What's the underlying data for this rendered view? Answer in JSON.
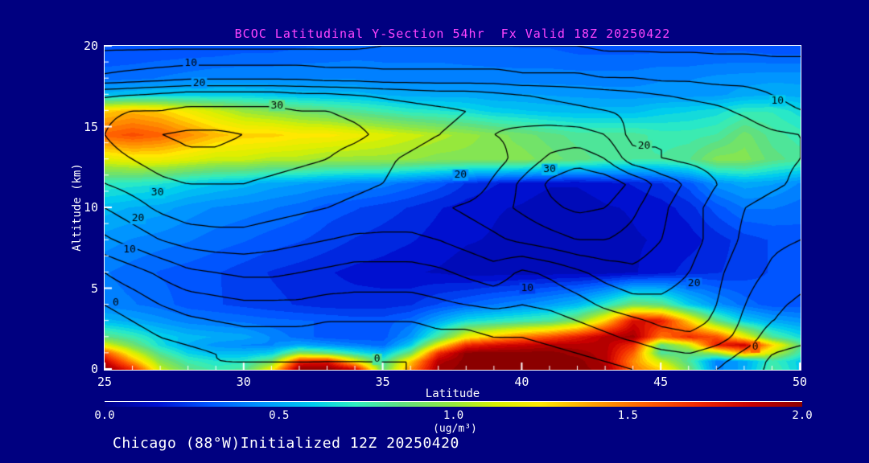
{
  "title": "BCOC Latitudinal Y-Section 54hr  Fx Valid 18Z 20250422",
  "footer": {
    "text": "Chicago (88°W)Initialized 12Z 20250420"
  },
  "colors": {
    "background": "#000080",
    "frame": "#FFFFFF",
    "title_text": "#FF45FF",
    "tick_text": "#FFFFFF",
    "contour_line": "#000000"
  },
  "axes": {
    "x": {
      "label": "Latitude",
      "min": 25,
      "max": 50,
      "minor_step": 1,
      "major_ticks": [
        {
          "v": 25,
          "t": "25"
        },
        {
          "v": 30,
          "t": "30"
        },
        {
          "v": 35,
          "t": "35"
        },
        {
          "v": 40,
          "t": "40"
        },
        {
          "v": 45,
          "t": "45"
        },
        {
          "v": 50,
          "t": "50"
        }
      ]
    },
    "y": {
      "label": "Altitude (km)",
      "min": 0,
      "max": 20,
      "minor_step": 1,
      "major_ticks": [
        {
          "v": 0,
          "t": "0"
        },
        {
          "v": 5,
          "t": "5"
        },
        {
          "v": 10,
          "t": "10"
        },
        {
          "v": 15,
          "t": "15"
        },
        {
          "v": 20,
          "t": "20"
        }
      ]
    }
  },
  "colorbar": {
    "unit": "(ug/m³)",
    "min": 0,
    "max": 2,
    "ticks": [
      {
        "v": 0,
        "t": "0.0"
      },
      {
        "v": 0.5,
        "t": "0.5"
      },
      {
        "v": 1,
        "t": "1.0"
      },
      {
        "v": 1.5,
        "t": "1.5"
      },
      {
        "v": 2,
        "t": "2.0"
      }
    ],
    "stops": [
      [
        0.0,
        "#000089"
      ],
      [
        0.15,
        "#0010D0"
      ],
      [
        0.3,
        "#0055FF"
      ],
      [
        0.45,
        "#0095FF"
      ],
      [
        0.6,
        "#00CCEE"
      ],
      [
        0.72,
        "#30EEC0"
      ],
      [
        0.85,
        "#60E080"
      ],
      [
        1.0,
        "#96E83C"
      ],
      [
        1.12,
        "#D8F000"
      ],
      [
        1.25,
        "#FFE800"
      ],
      [
        1.4,
        "#FFA000"
      ],
      [
        1.55,
        "#FF6000"
      ],
      [
        1.7,
        "#F02800"
      ],
      [
        1.85,
        "#C80000"
      ],
      [
        2.0,
        "#8B0000"
      ]
    ]
  },
  "chart_data": {
    "type": "filled_contour_cross_section",
    "title": "BCOC Latitudinal Y-Section 54hr  Fx Valid 18Z 20250422",
    "xlabel": "Latitude",
    "ylabel": "Altitude (km)",
    "xlim": [
      25,
      50
    ],
    "ylim": [
      0,
      20
    ],
    "x_lats": [
      25,
      26,
      27,
      28,
      29,
      30,
      31,
      32,
      33,
      34,
      35,
      36,
      37,
      38,
      39,
      40,
      41,
      42,
      43,
      44,
      45,
      46,
      47,
      48,
      49,
      50
    ],
    "y_alts": [
      0,
      0.5,
      1,
      1.5,
      2,
      3,
      4,
      6,
      8,
      10,
      11.5,
      13,
      14.5,
      16,
      17,
      18,
      20
    ],
    "fill_field": {
      "name": "BCOC concentration",
      "units": "ug/m3",
      "range": [
        0,
        2
      ],
      "quantize_step": 0.05,
      "values": [
        [
          2.0,
          1.7,
          1.1,
          0.85,
          0.75,
          0.8,
          1.2,
          2.0,
          2.0,
          1.85,
          0.85,
          1.45,
          1.95,
          2.0,
          2.0,
          2.0,
          2.0,
          2.0,
          1.95,
          1.5,
          1.3,
          0.9,
          0.4,
          0.5,
          0.8,
          0.6
        ],
        [
          1.85,
          1.4,
          0.95,
          0.75,
          0.68,
          0.7,
          0.9,
          1.7,
          1.75,
          1.2,
          0.75,
          1.3,
          1.9,
          2.0,
          2.0,
          2.0,
          2.0,
          2.0,
          1.9,
          1.45,
          1.1,
          0.8,
          0.4,
          0.5,
          0.75,
          0.6
        ],
        [
          1.6,
          1.15,
          0.8,
          0.62,
          0.55,
          0.55,
          0.6,
          0.95,
          0.85,
          0.7,
          0.55,
          0.9,
          1.7,
          2.0,
          2.0,
          2.0,
          2.0,
          1.95,
          1.9,
          1.55,
          0.8,
          0.85,
          1.0,
          1.4,
          1.1,
          0.75
        ],
        [
          1.15,
          0.9,
          0.65,
          0.52,
          0.45,
          0.42,
          0.42,
          0.5,
          0.45,
          0.4,
          0.35,
          0.6,
          1.2,
          1.7,
          1.8,
          1.85,
          1.9,
          1.9,
          1.9,
          1.7,
          0.85,
          1.1,
          1.75,
          1.85,
          1.3,
          0.85
        ],
        [
          0.85,
          0.75,
          0.62,
          0.55,
          0.52,
          0.5,
          0.42,
          0.35,
          0.3,
          0.28,
          0.3,
          0.45,
          0.8,
          1.2,
          1.35,
          1.5,
          1.6,
          1.75,
          1.9,
          1.95,
          1.5,
          1.7,
          1.6,
          1.2,
          0.8,
          0.65
        ],
        [
          0.55,
          0.5,
          0.45,
          0.4,
          0.38,
          0.36,
          0.34,
          0.33,
          0.32,
          0.3,
          0.3,
          0.35,
          0.5,
          0.65,
          0.7,
          0.75,
          0.8,
          0.95,
          1.3,
          1.8,
          1.75,
          1.3,
          0.85,
          0.6,
          0.5,
          0.45
        ],
        [
          0.4,
          0.38,
          0.35,
          0.3,
          0.28,
          0.26,
          0.24,
          0.22,
          0.2,
          0.2,
          0.2,
          0.22,
          0.28,
          0.33,
          0.38,
          0.42,
          0.48,
          0.55,
          0.7,
          0.9,
          0.85,
          0.6,
          0.45,
          0.35,
          0.3,
          0.3
        ],
        [
          0.38,
          0.35,
          0.32,
          0.3,
          0.28,
          0.25,
          0.22,
          0.2,
          0.18,
          0.16,
          0.15,
          0.13,
          0.12,
          0.1,
          0.1,
          0.1,
          0.1,
          0.1,
          0.1,
          0.12,
          0.15,
          0.2,
          0.22,
          0.25,
          0.28,
          0.3
        ],
        [
          0.45,
          0.42,
          0.4,
          0.38,
          0.35,
          0.33,
          0.3,
          0.28,
          0.25,
          0.22,
          0.2,
          0.18,
          0.15,
          0.13,
          0.12,
          0.1,
          0.1,
          0.1,
          0.1,
          0.12,
          0.13,
          0.15,
          0.2,
          0.25,
          0.28,
          0.3
        ],
        [
          0.55,
          0.52,
          0.5,
          0.45,
          0.42,
          0.4,
          0.38,
          0.35,
          0.3,
          0.28,
          0.25,
          0.22,
          0.18,
          0.15,
          0.13,
          0.12,
          0.1,
          0.1,
          0.12,
          0.13,
          0.15,
          0.2,
          0.3,
          0.38,
          0.38,
          0.35
        ],
        [
          0.72,
          0.7,
          0.68,
          0.62,
          0.58,
          0.55,
          0.5,
          0.48,
          0.45,
          0.42,
          0.4,
          0.35,
          0.3,
          0.22,
          0.18,
          0.15,
          0.13,
          0.13,
          0.15,
          0.18,
          0.22,
          0.3,
          0.45,
          0.5,
          0.48,
          0.42
        ],
        [
          1.15,
          1.2,
          1.2,
          1.15,
          1.1,
          1.1,
          1.05,
          1.05,
          1.0,
          1.0,
          1.0,
          0.98,
          0.95,
          0.95,
          0.95,
          0.95,
          0.9,
          0.85,
          0.8,
          0.78,
          0.78,
          0.82,
          0.95,
          0.95,
          0.85,
          0.8
        ],
        [
          1.55,
          1.6,
          1.55,
          1.45,
          1.35,
          1.3,
          1.3,
          1.25,
          1.25,
          1.2,
          1.15,
          1.1,
          1.05,
          1.0,
          0.95,
          0.9,
          0.85,
          0.8,
          0.8,
          0.8,
          0.75,
          0.75,
          0.78,
          0.9,
          0.8,
          0.75
        ],
        [
          1.3,
          1.35,
          1.3,
          1.2,
          1.1,
          1.0,
          0.95,
          0.9,
          0.85,
          0.8,
          0.75,
          0.7,
          0.68,
          0.65,
          0.6,
          0.58,
          0.56,
          0.55,
          0.55,
          0.55,
          0.6,
          0.62,
          0.65,
          0.72,
          0.72,
          0.65
        ],
        [
          0.55,
          0.58,
          0.6,
          0.6,
          0.6,
          0.6,
          0.58,
          0.56,
          0.55,
          0.55,
          0.52,
          0.5,
          0.5,
          0.5,
          0.48,
          0.48,
          0.47,
          0.46,
          0.45,
          0.45,
          0.45,
          0.45,
          0.46,
          0.5,
          0.52,
          0.5
        ],
        [
          0.35,
          0.36,
          0.38,
          0.4,
          0.42,
          0.42,
          0.42,
          0.42,
          0.42,
          0.42,
          0.4,
          0.4,
          0.4,
          0.4,
          0.4,
          0.4,
          0.4,
          0.4,
          0.4,
          0.4,
          0.42,
          0.42,
          0.44,
          0.45,
          0.46,
          0.46
        ],
        [
          0.28,
          0.28,
          0.28,
          0.28,
          0.28,
          0.3,
          0.3,
          0.32,
          0.33,
          0.34,
          0.35,
          0.35,
          0.35,
          0.34,
          0.33,
          0.32,
          0.32,
          0.3,
          0.3,
          0.3,
          0.3,
          0.3,
          0.3,
          0.3,
          0.28,
          0.28
        ]
      ]
    },
    "contour_field": {
      "name": "overlay contour field",
      "levels": [
        0,
        5,
        10,
        15,
        20,
        25,
        30,
        35
      ],
      "label_levels": [
        0,
        10,
        20,
        30
      ],
      "values": [
        [
          -5,
          -4,
          -3,
          -2,
          -1,
          0,
          0,
          0,
          -1,
          -1,
          0,
          0,
          1,
          1,
          1,
          2,
          2,
          3,
          4,
          5,
          6,
          6,
          5,
          2,
          -1,
          -2
        ],
        [
          -5,
          -4,
          -2,
          -1,
          0,
          0,
          0,
          0,
          0,
          0,
          0,
          0,
          1,
          1,
          2,
          2,
          3,
          4,
          5,
          6,
          7,
          8,
          6,
          3,
          -1,
          -2
        ],
        [
          -4,
          -3,
          -2,
          -1,
          0,
          1,
          1,
          1,
          1,
          1,
          1,
          1,
          2,
          2,
          3,
          3,
          4,
          5,
          6,
          8,
          9,
          10,
          8,
          4,
          0,
          -1
        ],
        [
          -4,
          -3,
          -1,
          0,
          1,
          2,
          2,
          2,
          2,
          2,
          2,
          2,
          3,
          3,
          4,
          4,
          5,
          6,
          8,
          9,
          11,
          12,
          10,
          6,
          1,
          0
        ],
        [
          -3,
          -2,
          0,
          1,
          2,
          3,
          3,
          3,
          3,
          3,
          3,
          3,
          4,
          4,
          5,
          5,
          6,
          7,
          9,
          11,
          13,
          14,
          12,
          8,
          2,
          1
        ],
        [
          -2,
          0,
          2,
          4,
          5,
          6,
          6,
          6,
          5,
          5,
          5,
          5,
          6,
          6,
          7,
          7,
          8,
          10,
          12,
          14,
          16,
          17,
          14,
          9,
          5,
          3
        ],
        [
          0,
          2,
          5,
          7,
          8,
          9,
          9,
          9,
          8,
          8,
          8,
          8,
          9,
          10,
          11,
          10,
          11,
          13,
          16,
          18,
          19,
          18,
          15,
          10,
          6,
          4
        ],
        [
          5,
          8,
          11,
          14,
          15,
          16,
          16,
          15,
          14,
          13,
          13,
          13,
          14,
          16,
          18,
          14,
          16,
          19,
          22,
          24,
          22,
          20,
          16,
          12,
          9,
          7
        ],
        [
          14,
          17,
          20,
          22,
          23,
          23,
          22,
          21,
          20,
          19,
          19,
          19,
          20,
          22,
          24,
          26,
          28,
          30,
          30,
          28,
          25,
          22,
          18,
          14,
          11,
          10
        ],
        [
          20,
          23,
          26,
          28,
          28,
          28,
          27,
          26,
          25,
          24,
          23,
          23,
          24,
          26,
          28,
          31,
          34,
          36,
          35,
          31,
          26,
          22,
          18,
          15,
          13,
          12
        ],
        [
          25,
          27,
          29,
          30,
          30,
          30,
          29,
          28,
          27,
          26,
          25,
          23,
          21,
          21,
          26,
          31,
          36,
          39,
          38,
          34,
          28,
          24,
          20,
          18,
          16,
          14
        ],
        [
          28,
          30,
          32,
          34,
          34,
          33,
          32,
          31,
          30,
          28,
          26,
          24,
          22,
          20,
          23,
          27,
          31,
          33,
          30,
          22,
          20,
          19,
          18,
          17,
          16,
          15
        ],
        [
          30,
          33,
          35,
          36,
          36,
          35,
          34,
          33,
          32,
          31,
          29,
          27,
          25,
          24,
          25,
          26,
          27,
          27,
          25,
          18,
          20,
          19,
          19,
          18,
          16,
          15
        ],
        [
          29,
          30,
          30,
          31,
          31,
          31,
          31,
          30,
          30,
          29,
          28,
          27,
          26,
          25,
          24,
          23,
          22,
          21,
          20,
          19,
          18,
          17,
          16,
          14,
          11,
          10
        ],
        [
          24,
          25,
          26,
          27,
          27,
          27,
          27,
          26,
          26,
          25,
          24,
          23,
          22,
          22,
          21,
          20,
          19,
          18,
          17,
          16,
          15,
          14,
          13,
          12,
          10,
          9
        ],
        [
          11,
          12,
          13,
          14,
          14,
          14,
          14,
          14,
          13,
          13,
          12,
          12,
          12,
          12,
          12,
          11,
          11,
          11,
          10,
          10,
          9,
          9,
          8,
          8,
          7,
          7
        ],
        [
          4,
          4,
          4,
          4,
          4,
          4,
          4,
          4,
          4,
          4,
          5,
          5,
          5,
          5,
          5,
          5,
          5,
          5,
          4,
          4,
          4,
          4,
          4,
          4,
          4,
          4
        ]
      ],
      "labels": [
        {
          "t": "10",
          "lat": 28.1,
          "alt": 18.9
        },
        {
          "t": "20",
          "lat": 28.4,
          "alt": 17.7
        },
        {
          "t": "30",
          "lat": 31.2,
          "alt": 16.3
        },
        {
          "t": "30",
          "lat": 26.9,
          "alt": 10.9
        },
        {
          "t": "20",
          "lat": 26.2,
          "alt": 9.3
        },
        {
          "t": "10",
          "lat": 25.9,
          "alt": 7.4
        },
        {
          "t": "0",
          "lat": 25.4,
          "alt": 4.1
        },
        {
          "t": "20",
          "lat": 37.8,
          "alt": 12.0
        },
        {
          "t": "30",
          "lat": 41.0,
          "alt": 12.35
        },
        {
          "t": "20",
          "lat": 44.4,
          "alt": 13.8
        },
        {
          "t": "10",
          "lat": 49.2,
          "alt": 16.6
        },
        {
          "t": "10",
          "lat": 40.2,
          "alt": 5.0
        },
        {
          "t": "20",
          "lat": 46.2,
          "alt": 5.3
        },
        {
          "t": "0",
          "lat": 48.4,
          "alt": 1.35
        },
        {
          "t": "0",
          "lat": 34.8,
          "alt": 0.6
        }
      ]
    }
  }
}
